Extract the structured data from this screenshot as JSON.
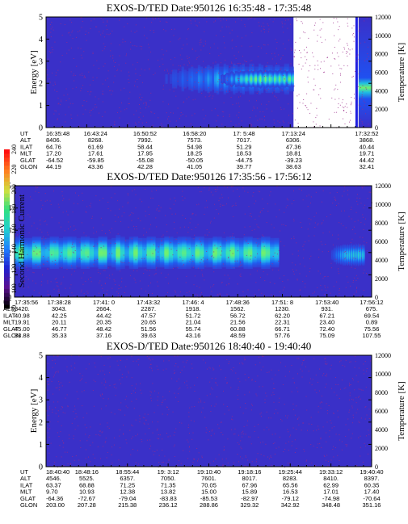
{
  "chart_data": [
    {
      "type": "heatmap",
      "title": "EXOS-D/TED",
      "date_label": "Date:950126",
      "time_range": "16:35:48 - 17:35:48",
      "ylabel": "Energy [eV]",
      "ylim": [
        0,
        5
      ],
      "yticks": [
        "0",
        "1",
        "2",
        "3",
        "4",
        "5"
      ],
      "right_label": "Temperature [K]",
      "right_ylim": [
        0,
        12000
      ],
      "right_ticks": [
        "0",
        "2000",
        "4000",
        "6000",
        "8000",
        "10000",
        "12000"
      ],
      "row_labels": [
        "UT",
        "ALT",
        "ILAT",
        "MLT",
        "GLAT",
        "GLON"
      ],
      "columns": [
        [
          "16:35:48",
          "8406.",
          "64.76",
          "17.20",
          "-64.52",
          "44.19"
        ],
        [
          "16:43:24",
          "8268.",
          "61.69",
          "17.61",
          "-59.85",
          "43.36"
        ],
        [
          "16:50:52",
          "7992.",
          "58.44",
          "17.95",
          "-55.08",
          "42.28"
        ],
        [
          "16:58:20",
          "7573.",
          "54.98",
          "18.25",
          "-50.05",
          "41.05"
        ],
        [
          "17: 5:48",
          "7017.",
          "51.29",
          "18.53",
          "-44.75",
          "39.77"
        ],
        [
          "17:13:24",
          "6306.",
          "47.36",
          "18.81",
          "-39.23",
          "38.63"
        ],
        [
          "17:32:52",
          "3868.",
          "40.44",
          "19.71",
          "44.42",
          "32.41"
        ]
      ],
      "features": [
        {
          "t0": 0.33,
          "t1": 0.76,
          "e": 2.2,
          "w": 0.9,
          "peak": 0.5
        },
        {
          "t0": 0.52,
          "t1": 0.76,
          "e": 2.2,
          "w": 0.45,
          "peak": 1.0
        }
      ],
      "data_gap": [
        0.76,
        0.96
      ]
    },
    {
      "type": "heatmap",
      "title": "EXOS-D/TED",
      "date_label": "Date:950126",
      "time_range": "17:35:56 - 17:56:12",
      "ylabel": "Energy [eV]",
      "ylim": [
        0,
        5
      ],
      "yticks": [
        "0",
        "1",
        "2",
        "3",
        "4",
        "5"
      ],
      "right_label": "Temperature [K]",
      "right_ylim": [
        0,
        12000
      ],
      "right_ticks": [
        "0",
        "2000",
        "4000",
        "6000",
        "8000",
        "10000",
        "12000"
      ],
      "row_labels": [
        "UT",
        "ALT",
        "ILAT",
        "MLT",
        "GLAT",
        "GLON"
      ],
      "columns": [
        [
          "17:35:56",
          "3420.",
          "40.98",
          "19.91",
          "45.00",
          "33.88"
        ],
        [
          "17:38:28",
          "3043.",
          "42.25",
          "20.11",
          "46.77",
          "35.33"
        ],
        [
          "17:41: 0",
          "2664.",
          "44.42",
          "20.35",
          "48.42",
          "37.16"
        ],
        [
          "17:43:32",
          "2287.",
          "47.57",
          "20.65",
          "51.56",
          "39.63"
        ],
        [
          "17:46: 4",
          "1918.",
          "51.72",
          "21.04",
          "55.74",
          "43.16"
        ],
        [
          "17:48:36",
          "1562.",
          "56.72",
          "21.56",
          "60.88",
          "48.59"
        ],
        [
          "17:51: 8",
          "1230.",
          "62.20",
          "22.31",
          "66.71",
          "57.76"
        ],
        [
          "17:53:40",
          "931.",
          "67.21",
          "23.40",
          "72.40",
          "75.09"
        ],
        [
          "17:56:12",
          "675.",
          "69.54",
          "0.89",
          "75.56",
          "107.55"
        ]
      ],
      "features": [
        {
          "t0": 0.0,
          "t1": 0.74,
          "e": 2.0,
          "w": 0.85,
          "peak": 1.0
        },
        {
          "t0": 0.88,
          "t1": 0.98,
          "e": 1.9,
          "w": 0.6,
          "peak": 0.7
        }
      ],
      "colorbar": {
        "label": "Second Harmonic Current",
        "ticks": [
          "80",
          "100",
          "120",
          "140",
          "160",
          "180",
          "200",
          "220",
          "240"
        ]
      }
    },
    {
      "type": "heatmap",
      "title": "EXOS-D/TED",
      "date_label": "Date:950126",
      "time_range": "18:40:40 - 19:40:40",
      "ylabel": "Energy [eV]",
      "ylim": [
        0,
        5
      ],
      "yticks": [
        "0",
        "1",
        "2",
        "3",
        "4",
        "5"
      ],
      "right_label": "Temperature [K]",
      "right_ylim": [
        0,
        12000
      ],
      "right_ticks": [
        "0",
        "2000",
        "4000",
        "6000",
        "8000",
        "10000",
        "12000"
      ],
      "row_labels": [
        "UT",
        "ALT",
        "ILAT",
        "MLT",
        "GLAT",
        "GLON"
      ],
      "columns": [
        [
          "18:40:40",
          "4546.",
          "63.37",
          "9.70",
          "-64.36",
          "203.00"
        ],
        [
          "18:48:16",
          "5525.",
          "68.88",
          "10.93",
          "-72.67",
          "207.28"
        ],
        [
          "18:55:44",
          "6357.",
          "71.25",
          "12.38",
          "-79.04",
          "215.38"
        ],
        [
          "19: 3:12",
          "7050.",
          "71.35",
          "13.82",
          "-83.83",
          "236.12"
        ],
        [
          "19:10:40",
          "7601.",
          "70.05",
          "15.00",
          "-85.53",
          "288.86"
        ],
        [
          "19:18:16",
          "8017.",
          "67.96",
          "15.89",
          "-82.97",
          "329.32"
        ],
        [
          "19:25:44",
          "8283.",
          "65.56",
          "16.53",
          "-79.12",
          "342.92"
        ],
        [
          "19:33:12",
          "8410.",
          "62.99",
          "17.01",
          "-74.98",
          "348.48"
        ],
        [
          "19:40:40",
          "8397.",
          "60.35",
          "17.40",
          "-70.64",
          "351.16"
        ]
      ],
      "features": []
    }
  ],
  "colors": {
    "background_low": "#3a30c8",
    "noise": "#9a2a8a",
    "scale": [
      "#000000",
      "#5a0fa0",
      "#2020e0",
      "#2080ff",
      "#20d0d0",
      "#40e080",
      "#e0e040",
      "#ff8020",
      "#ff1010"
    ]
  }
}
